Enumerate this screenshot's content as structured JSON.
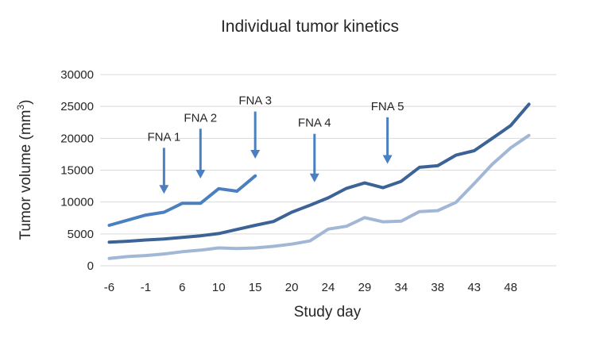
{
  "chart_data": {
    "type": "line",
    "title": "Individual tumor kinetics",
    "xlabel": "Study day",
    "ylabel_main": "Tumor volume (mm",
    "ylabel_sup": "3",
    "ylabel_close": ")",
    "ylim": [
      0,
      30000
    ],
    "yticks": [
      0,
      5000,
      10000,
      15000,
      20000,
      25000,
      30000
    ],
    "yticks_labels": [
      "0",
      "5000",
      "10000",
      "15000",
      "20000",
      "25000",
      "30000"
    ],
    "x_ticks_labels": [
      "-6",
      "-1",
      "6",
      "10",
      "15",
      "20",
      "24",
      "29",
      "34",
      "38",
      "43",
      "48"
    ],
    "num_points": 25,
    "grid": "horizontal",
    "series": [
      {
        "color": "#3c6396",
        "values": [
          3700,
          3850,
          4050,
          4200,
          4450,
          4700,
          5050,
          5700,
          6350,
          6950,
          8400,
          9500,
          10650,
          12150,
          13000,
          12250,
          13250,
          15450,
          15700,
          17350,
          18050,
          20000,
          22000,
          25350
        ]
      },
      {
        "color": "#4a80bf",
        "values": [
          6350,
          7150,
          7950,
          8400,
          9800,
          9800,
          12100,
          11700,
          14100
        ]
      },
      {
        "color": "#a2b7d6",
        "values": [
          1150,
          1450,
          1600,
          1850,
          2200,
          2450,
          2800,
          2700,
          2800,
          3050,
          3400,
          3900,
          5750,
          6200,
          7550,
          6900,
          7000,
          8500,
          8650,
          9950,
          12900,
          15950,
          18500,
          20450
        ]
      }
    ],
    "annotations": [
      {
        "label": "FNA 1",
        "x_index": 3,
        "arrow_top": 18500,
        "arrow_bottom": 11300
      },
      {
        "label": "FNA 2",
        "x_index": 5,
        "arrow_top": 21500,
        "arrow_bottom": 13700
      },
      {
        "label": "FNA 3",
        "x_index": 8,
        "arrow_top": 24200,
        "arrow_bottom": 16800
      },
      {
        "label": "FNA 4",
        "x_index": 11.25,
        "arrow_top": 20700,
        "arrow_bottom": 13100
      },
      {
        "label": "FNA 5",
        "x_index": 15.25,
        "arrow_top": 23300,
        "arrow_bottom": 16000
      }
    ],
    "arrow_color": "#4a7fc1",
    "gridline_color": "#d9d9d9"
  }
}
